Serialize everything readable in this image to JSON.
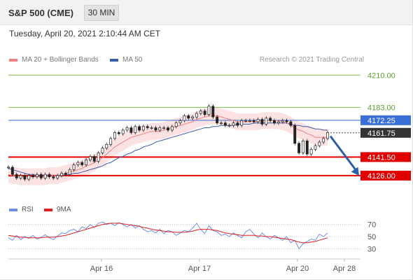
{
  "header": {
    "title": "S&P 500 (CME)",
    "timeframe": "30 MIN"
  },
  "datetime": "Tuesday, April 20, 2021 2:10:44 AM CET",
  "legend": {
    "ma20_label": "MA 20 + Bollinger Bands",
    "ma50_label": "MA 50",
    "research": "Research © 2021 Trading Central"
  },
  "rsi_legend": {
    "rsi_label": "RSI",
    "ma_label": "9MA"
  },
  "colors": {
    "ma20": "#f08080",
    "ma50": "#3a5fa8",
    "resistance": "#7cbb4a",
    "pivot": "#3a6fd8",
    "support": "#e00000",
    "price": "#333333",
    "band": "#fbd8d8",
    "arrow": "#2b5ea8",
    "rsi": "#6f8fe6",
    "rsi_ma": "#e02020"
  },
  "chart_data": [
    {
      "type": "line",
      "title": "",
      "x_labels": [
        "Apr 16",
        "Apr 17",
        "Apr 20",
        "Apr 28"
      ],
      "ylim": [
        4116,
        4216
      ],
      "levels": [
        {
          "name": "resistance-2",
          "value": 4210.0,
          "label": "4210.00",
          "kind": "resistance"
        },
        {
          "name": "resistance-1",
          "value": 4183.0,
          "label": "4183.00",
          "kind": "resistance"
        },
        {
          "name": "pivot",
          "value": 4172.25,
          "label": "4172.25",
          "kind": "pivot"
        },
        {
          "name": "last-price",
          "value": 4161.75,
          "label": "4161.75",
          "kind": "price"
        },
        {
          "name": "support-1",
          "value": 4141.5,
          "label": "4141.50",
          "kind": "support"
        },
        {
          "name": "support-2",
          "value": 4126.0,
          "label": "4126.00",
          "kind": "support"
        }
      ],
      "price_series": [
        4133,
        4127,
        4124,
        4126,
        4123,
        4126,
        4125,
        4127,
        4124,
        4127,
        4125,
        4124,
        4126,
        4128,
        4127,
        4131,
        4135,
        4137,
        4135,
        4139,
        4142,
        4138,
        4145,
        4149,
        4152,
        4157,
        4162,
        4161,
        4164,
        4166,
        4162,
        4167,
        4164,
        4167,
        4166,
        4166,
        4164,
        4166,
        4166,
        4164,
        4167,
        4170,
        4172,
        4176,
        4174,
        4175,
        4178,
        4180,
        4177,
        4184,
        4175,
        4170,
        4170,
        4168,
        4168,
        4170,
        4168,
        4172,
        4172,
        4172,
        4171,
        4173,
        4169,
        4174,
        4172,
        4170,
        4171,
        4172,
        4171,
        4168,
        4153,
        4145,
        4155,
        4144,
        4148,
        4151,
        4154,
        4157,
        4162
      ],
      "ma20_series": [
        4127,
        4126,
        4126,
        4125,
        4125,
        4125,
        4125,
        4125,
        4125,
        4125,
        4126,
        4126,
        4126,
        4127,
        4128,
        4129,
        4130,
        4131,
        4132,
        4134,
        4135,
        4137,
        4139,
        4141,
        4144,
        4147,
        4150,
        4152,
        4154,
        4156,
        4158,
        4159,
        4160,
        4161,
        4162,
        4163,
        4163,
        4163,
        4164,
        4165,
        4166,
        4167,
        4168,
        4169,
        4170,
        4171,
        4173,
        4174,
        4175,
        4176,
        4176,
        4176,
        4175,
        4174,
        4173,
        4172,
        4171,
        4171,
        4171,
        4171,
        4171,
        4171,
        4172,
        4172,
        4172,
        4172,
        4172,
        4171,
        4170,
        4168,
        4166,
        4164,
        4163,
        4161,
        4160,
        4158,
        4158,
        4158,
        4158
      ],
      "ma50_series": [
        4132,
        4131,
        4130,
        4129,
        4128,
        4127,
        4127,
        4126,
        4126,
        4126,
        4126,
        4126,
        4126,
        4126,
        4127,
        4127,
        4128,
        4128,
        4129,
        4130,
        4131,
        4132,
        4133,
        4134,
        4136,
        4137,
        4139,
        4141,
        4142,
        4144,
        4145,
        4147,
        4148,
        4150,
        4151,
        4152,
        4154,
        4155,
        4156,
        4157,
        4158,
        4159,
        4160,
        4161,
        4162,
        4163,
        4164,
        4165,
        4166,
        4166,
        4167,
        4167,
        4168,
        4168,
        4168,
        4168,
        4169,
        4169,
        4169,
        4169,
        4170,
        4170,
        4170,
        4170,
        4170,
        4170,
        4170,
        4170,
        4170,
        4169,
        4168,
        4168,
        4167,
        4167,
        4166,
        4165,
        4165,
        4164,
        4164
      ],
      "band_width": 7,
      "arrow": {
        "from": 4159,
        "to": 4126
      }
    },
    {
      "type": "line",
      "title": "",
      "ylim": [
        20,
        80
      ],
      "yticks": [
        70,
        50,
        30
      ],
      "ytick_labels": [
        "70",
        "50",
        "30"
      ],
      "series": [
        {
          "name": "RSI",
          "values": [
            48,
            44,
            52,
            45,
            50,
            47,
            52,
            46,
            49,
            53,
            48,
            45,
            51,
            56,
            55,
            60,
            62,
            58,
            66,
            63,
            70,
            65,
            72,
            74,
            70,
            72,
            68,
            73,
            70,
            66,
            70,
            64,
            68,
            62,
            58,
            60,
            56,
            62,
            55,
            60,
            58,
            52,
            56,
            60,
            58,
            64,
            72,
            62,
            55,
            68,
            60,
            58,
            52,
            54,
            50,
            56,
            52,
            48,
            58,
            62,
            54,
            48,
            56,
            50,
            46,
            52,
            48,
            44,
            50,
            40,
            44,
            30,
            38,
            42,
            46,
            44,
            54,
            50,
            56
          ]
        },
        {
          "name": "9MA",
          "values": [
            52,
            51,
            50,
            49,
            49,
            48,
            48,
            48,
            48,
            49,
            49,
            49,
            50,
            51,
            52,
            54,
            56,
            58,
            60,
            62,
            64,
            66,
            68,
            70,
            71,
            72,
            72,
            72,
            71,
            70,
            69,
            68,
            67,
            65,
            64,
            62,
            61,
            60,
            59,
            58,
            58,
            57,
            57,
            57,
            58,
            59,
            61,
            62,
            62,
            62,
            61,
            60,
            58,
            56,
            55,
            54,
            53,
            52,
            52,
            52,
            52,
            51,
            51,
            50,
            50,
            49,
            48,
            47,
            46,
            45,
            43,
            41,
            40,
            40,
            41,
            42,
            44,
            46,
            48
          ]
        }
      ]
    }
  ]
}
